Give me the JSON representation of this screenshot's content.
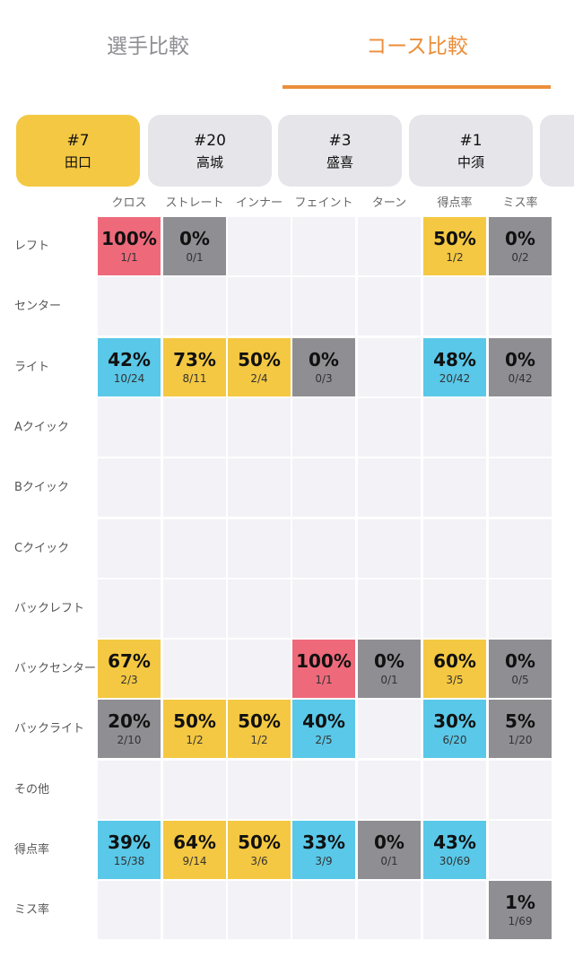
{
  "tabs": [
    {
      "label": "選手比較",
      "active": false
    },
    {
      "label": "コース比較",
      "active": true
    }
  ],
  "colors": {
    "accent": "#ec8e3a",
    "red": "#ee6a7b",
    "gray": "#8e8e93",
    "yellow": "#f4c842",
    "blue": "#5ac8e8",
    "empty": "#f2f2f7"
  },
  "players": [
    {
      "number": "#7",
      "name": "田口",
      "selected": true
    },
    {
      "number": "#20",
      "name": "高城",
      "selected": false
    },
    {
      "number": "#3",
      "name": "盛喜",
      "selected": false
    },
    {
      "number": "#1",
      "name": "中須",
      "selected": false
    }
  ],
  "columns": [
    "クロス",
    "ストレート",
    "インナー",
    "フェイント",
    "ターン",
    "得点率",
    "ミス率"
  ],
  "rows": [
    {
      "label": "レフト",
      "cells": [
        {
          "pct": "100%",
          "frac": "1/1",
          "color": "red"
        },
        {
          "pct": "0%",
          "frac": "0/1",
          "color": "gray"
        },
        null,
        null,
        null,
        {
          "pct": "50%",
          "frac": "1/2",
          "color": "yellow"
        },
        {
          "pct": "0%",
          "frac": "0/2",
          "color": "gray"
        }
      ]
    },
    {
      "label": "センター",
      "cells": [
        null,
        null,
        null,
        null,
        null,
        null,
        null
      ]
    },
    {
      "label": "ライト",
      "cells": [
        {
          "pct": "42%",
          "frac": "10/24",
          "color": "blue"
        },
        {
          "pct": "73%",
          "frac": "8/11",
          "color": "yellow"
        },
        {
          "pct": "50%",
          "frac": "2/4",
          "color": "yellow"
        },
        {
          "pct": "0%",
          "frac": "0/3",
          "color": "gray"
        },
        null,
        {
          "pct": "48%",
          "frac": "20/42",
          "color": "blue"
        },
        {
          "pct": "0%",
          "frac": "0/42",
          "color": "gray"
        }
      ]
    },
    {
      "label": "Aクイック",
      "cells": [
        null,
        null,
        null,
        null,
        null,
        null,
        null
      ]
    },
    {
      "label": "Bクイック",
      "cells": [
        null,
        null,
        null,
        null,
        null,
        null,
        null
      ]
    },
    {
      "label": "Cクイック",
      "cells": [
        null,
        null,
        null,
        null,
        null,
        null,
        null
      ]
    },
    {
      "label": "バックレフト",
      "cells": [
        null,
        null,
        null,
        null,
        null,
        null,
        null
      ]
    },
    {
      "label": "バックセンター",
      "cells": [
        {
          "pct": "67%",
          "frac": "2/3",
          "color": "yellow"
        },
        null,
        null,
        {
          "pct": "100%",
          "frac": "1/1",
          "color": "red"
        },
        {
          "pct": "0%",
          "frac": "0/1",
          "color": "gray"
        },
        {
          "pct": "60%",
          "frac": "3/5",
          "color": "yellow"
        },
        {
          "pct": "0%",
          "frac": "0/5",
          "color": "gray"
        }
      ]
    },
    {
      "label": "バックライト",
      "cells": [
        {
          "pct": "20%",
          "frac": "2/10",
          "color": "gray"
        },
        {
          "pct": "50%",
          "frac": "1/2",
          "color": "yellow"
        },
        {
          "pct": "50%",
          "frac": "1/2",
          "color": "yellow"
        },
        {
          "pct": "40%",
          "frac": "2/5",
          "color": "blue"
        },
        null,
        {
          "pct": "30%",
          "frac": "6/20",
          "color": "blue"
        },
        {
          "pct": "5%",
          "frac": "1/20",
          "color": "gray"
        }
      ]
    },
    {
      "label": "その他",
      "cells": [
        null,
        null,
        null,
        null,
        null,
        null,
        null
      ]
    },
    {
      "label": "得点率",
      "cells": [
        {
          "pct": "39%",
          "frac": "15/38",
          "color": "blue"
        },
        {
          "pct": "64%",
          "frac": "9/14",
          "color": "yellow"
        },
        {
          "pct": "50%",
          "frac": "3/6",
          "color": "yellow"
        },
        {
          "pct": "33%",
          "frac": "3/9",
          "color": "blue"
        },
        {
          "pct": "0%",
          "frac": "0/1",
          "color": "gray"
        },
        {
          "pct": "43%",
          "frac": "30/69",
          "color": "blue"
        },
        null
      ]
    },
    {
      "label": "ミス率",
      "cells": [
        null,
        null,
        null,
        null,
        null,
        null,
        {
          "pct": "1%",
          "frac": "1/69",
          "color": "gray"
        }
      ]
    }
  ]
}
